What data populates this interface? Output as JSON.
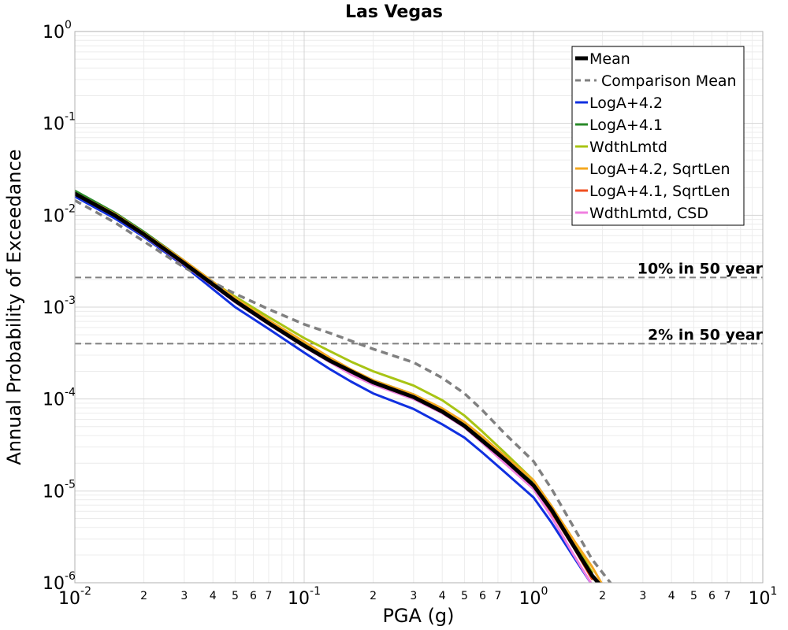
{
  "chart_data": {
    "type": "line",
    "title": "Las Vegas",
    "xlabel": "PGA (g)",
    "ylabel": "Annual Probability of Exceedance",
    "xscale": "log",
    "yscale": "log",
    "xlim": [
      0.01,
      10
    ],
    "ylim": [
      1e-06,
      1
    ],
    "grid": true,
    "legend_position": "top-right",
    "x_tick_labels": {
      "major": [
        {
          "value": 0.01,
          "base": "10",
          "exp": "-2"
        },
        {
          "value": 0.1,
          "base": "10",
          "exp": "-1"
        },
        {
          "value": 1,
          "base": "10",
          "exp": "0"
        },
        {
          "value": 10,
          "base": "10",
          "exp": "1"
        }
      ],
      "minor": [
        "2",
        "3",
        "4",
        "5",
        "6",
        "7"
      ]
    },
    "y_tick_labels": [
      {
        "value": 1,
        "base": "10",
        "exp": "0"
      },
      {
        "value": 0.1,
        "base": "10",
        "exp": "-1"
      },
      {
        "value": 0.01,
        "base": "10",
        "exp": "-2"
      },
      {
        "value": 0.001,
        "base": "10",
        "exp": "-3"
      },
      {
        "value": 0.0001,
        "base": "10",
        "exp": "-4"
      },
      {
        "value": 1e-05,
        "base": "10",
        "exp": "-5"
      },
      {
        "value": 1e-06,
        "base": "10",
        "exp": "-6"
      }
    ],
    "reference_lines": [
      {
        "label": "10% in 50 year",
        "y": 0.0021,
        "color": "#808080",
        "dash": "dashed"
      },
      {
        "label": "2% in 50 year",
        "y": 0.0004,
        "color": "#808080",
        "dash": "dashed"
      }
    ],
    "series": [
      {
        "name": "LogA+4.2",
        "color": "#1030e0",
        "width": 3,
        "dash": "solid",
        "x": [
          0.01,
          0.015,
          0.02,
          0.03,
          0.05,
          0.07,
          0.1,
          0.13,
          0.16,
          0.2,
          0.3,
          0.4,
          0.5,
          0.6,
          0.75,
          1.0,
          1.2,
          1.5,
          1.8
        ],
        "y": [
          0.016,
          0.0092,
          0.0058,
          0.0028,
          0.001,
          0.00058,
          0.00032,
          0.00021,
          0.000155,
          0.000115,
          7.8e-05,
          5.3e-05,
          3.8e-05,
          2.6e-05,
          1.6e-05,
          8.5e-06,
          4.5e-06,
          1.9e-06,
          9.5e-07
        ]
      },
      {
        "name": "LogA+4.1",
        "color": "#2a8a2a",
        "width": 3,
        "dash": "solid",
        "x": [
          0.01,
          0.015,
          0.02,
          0.03,
          0.05,
          0.07,
          0.1,
          0.13,
          0.16,
          0.2,
          0.3,
          0.4,
          0.5,
          0.6,
          0.75,
          1.0,
          1.2,
          1.5,
          1.8
        ],
        "y": [
          0.0185,
          0.0106,
          0.0066,
          0.0032,
          0.00125,
          0.00072,
          0.0004,
          0.00027,
          0.0002,
          0.00016,
          0.000112,
          7.8e-05,
          5.4e-05,
          3.7e-05,
          2.3e-05,
          1.2e-05,
          6.3e-06,
          2.7e-06,
          1.3e-06
        ]
      },
      {
        "name": "WdthLmtd",
        "color": "#a8c414",
        "width": 3,
        "dash": "solid",
        "x": [
          0.01,
          0.015,
          0.02,
          0.03,
          0.05,
          0.07,
          0.1,
          0.13,
          0.16,
          0.2,
          0.3,
          0.4,
          0.5,
          0.6,
          0.75,
          1.0,
          1.2,
          1.5,
          1.8
        ],
        "y": [
          0.0175,
          0.01,
          0.0062,
          0.003,
          0.0013,
          0.00078,
          0.00046,
          0.00033,
          0.000255,
          0.0002,
          0.00014,
          9.7e-05,
          6.6e-05,
          4.4e-05,
          2.6e-05,
          1.3e-05,
          6.8e-06,
          2.8e-06,
          1.3e-06
        ]
      },
      {
        "name": "LogA+4.2, SqrtLen",
        "color": "#f5a820",
        "width": 3,
        "dash": "solid",
        "x": [
          0.01,
          0.015,
          0.02,
          0.03,
          0.05,
          0.07,
          0.1,
          0.13,
          0.16,
          0.2,
          0.3,
          0.4,
          0.5,
          0.6,
          0.75,
          1.0,
          1.2,
          1.5,
          1.8,
          2.0
        ],
        "y": [
          0.0175,
          0.0103,
          0.0064,
          0.0032,
          0.00125,
          0.00072,
          0.00042,
          0.00028,
          0.00021,
          0.00016,
          0.000112,
          7.9e-05,
          5.6e-05,
          3.9e-05,
          2.4e-05,
          1.3e-05,
          6.8e-06,
          2.9e-06,
          1.5e-06,
          9.5e-07
        ]
      },
      {
        "name": "LogA+4.1, SqrtLen",
        "color": "#f05020",
        "width": 3,
        "dash": "solid",
        "x": [
          0.01,
          0.015,
          0.02,
          0.03,
          0.05,
          0.07,
          0.1,
          0.13,
          0.16,
          0.2,
          0.3,
          0.4,
          0.5,
          0.6,
          0.75,
          1.0,
          1.2,
          1.5,
          1.8
        ],
        "y": [
          0.017,
          0.0098,
          0.0061,
          0.003,
          0.00115,
          0.00066,
          0.00038,
          0.00026,
          0.00019,
          0.000148,
          0.000102,
          7.1e-05,
          5e-05,
          3.4e-05,
          2.1e-05,
          1.1e-05,
          5.8e-06,
          2.4e-06,
          1.1e-06
        ]
      },
      {
        "name": "WdthLmtd, CSD",
        "color": "#f080e0",
        "width": 3,
        "dash": "solid",
        "x": [
          0.01,
          0.015,
          0.02,
          0.03,
          0.05,
          0.07,
          0.1,
          0.13,
          0.16,
          0.2,
          0.3,
          0.4,
          0.5,
          0.6,
          0.75,
          1.0,
          1.2,
          1.5,
          1.8
        ],
        "y": [
          0.0168,
          0.0097,
          0.006,
          0.0029,
          0.00113,
          0.00065,
          0.00037,
          0.00025,
          0.000185,
          0.000143,
          0.0001,
          7e-05,
          4.9e-05,
          3.3e-05,
          2e-05,
          1.05e-05,
          5.2e-06,
          2e-06,
          9.5e-07
        ]
      },
      {
        "name": "Comparison Mean",
        "color": "#808080",
        "width": 3.5,
        "dash": "dashed",
        "x": [
          0.01,
          0.015,
          0.02,
          0.03,
          0.05,
          0.07,
          0.1,
          0.13,
          0.16,
          0.2,
          0.3,
          0.4,
          0.5,
          0.6,
          0.75,
          1.0,
          1.2,
          1.5,
          1.8,
          2.2
        ],
        "y": [
          0.0145,
          0.0083,
          0.0052,
          0.0027,
          0.0014,
          0.00095,
          0.00065,
          0.00052,
          0.00043,
          0.00035,
          0.00025,
          0.00017,
          0.000115,
          7.5e-05,
          4.2e-05,
          2.1e-05,
          1.05e-05,
          4e-06,
          1.8e-06,
          9.5e-07
        ]
      },
      {
        "name": "Mean",
        "color": "#000000",
        "width": 5,
        "dash": "solid",
        "x": [
          0.01,
          0.015,
          0.02,
          0.03,
          0.05,
          0.07,
          0.1,
          0.13,
          0.16,
          0.2,
          0.3,
          0.4,
          0.5,
          0.6,
          0.75,
          1.0,
          1.2,
          1.5,
          1.8,
          1.95
        ],
        "y": [
          0.0172,
          0.0099,
          0.0062,
          0.003,
          0.00117,
          0.00067,
          0.00038,
          0.00026,
          0.0002,
          0.000152,
          0.000105,
          7.3e-05,
          5.1e-05,
          3.5e-05,
          2.2e-05,
          1.15e-05,
          6.2e-06,
          2.5e-06,
          1.2e-06,
          9.5e-07
        ]
      }
    ],
    "legend_order": [
      "Mean",
      "Comparison Mean",
      "LogA+4.2",
      "LogA+4.1",
      "WdthLmtd",
      "LogA+4.2, SqrtLen",
      "LogA+4.1, SqrtLen",
      "WdthLmtd, CSD"
    ]
  }
}
